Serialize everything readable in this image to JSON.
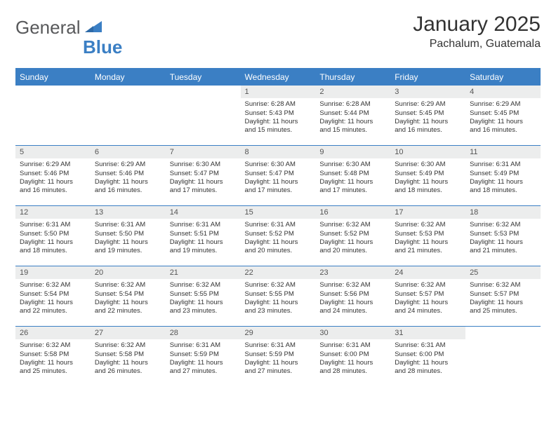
{
  "brand": {
    "name1": "General",
    "name2": "Blue"
  },
  "title": "January 2025",
  "location": "Pachalum, Guatemala",
  "style": {
    "accent": "#3b7fc4",
    "header_bg": "#3b7fc4",
    "header_fg": "#ffffff",
    "daynum_bg": "#eceded",
    "body_bg": "#ffffff",
    "text_color": "#333333",
    "logo_gray": "#58595b",
    "title_fontsize": 30,
    "location_fontsize": 16,
    "dayhead_fontsize": 12,
    "cell_fontsize": 9.5
  },
  "day_headers": [
    "Sunday",
    "Monday",
    "Tuesday",
    "Wednesday",
    "Thursday",
    "Friday",
    "Saturday"
  ],
  "weeks": [
    [
      {
        "n": "",
        "lines": []
      },
      {
        "n": "",
        "lines": []
      },
      {
        "n": "",
        "lines": []
      },
      {
        "n": "1",
        "lines": [
          "Sunrise: 6:28 AM",
          "Sunset: 5:43 PM",
          "Daylight: 11 hours",
          "and 15 minutes."
        ]
      },
      {
        "n": "2",
        "lines": [
          "Sunrise: 6:28 AM",
          "Sunset: 5:44 PM",
          "Daylight: 11 hours",
          "and 15 minutes."
        ]
      },
      {
        "n": "3",
        "lines": [
          "Sunrise: 6:29 AM",
          "Sunset: 5:45 PM",
          "Daylight: 11 hours",
          "and 16 minutes."
        ]
      },
      {
        "n": "4",
        "lines": [
          "Sunrise: 6:29 AM",
          "Sunset: 5:45 PM",
          "Daylight: 11 hours",
          "and 16 minutes."
        ]
      }
    ],
    [
      {
        "n": "5",
        "lines": [
          "Sunrise: 6:29 AM",
          "Sunset: 5:46 PM",
          "Daylight: 11 hours",
          "and 16 minutes."
        ]
      },
      {
        "n": "6",
        "lines": [
          "Sunrise: 6:29 AM",
          "Sunset: 5:46 PM",
          "Daylight: 11 hours",
          "and 16 minutes."
        ]
      },
      {
        "n": "7",
        "lines": [
          "Sunrise: 6:30 AM",
          "Sunset: 5:47 PM",
          "Daylight: 11 hours",
          "and 17 minutes."
        ]
      },
      {
        "n": "8",
        "lines": [
          "Sunrise: 6:30 AM",
          "Sunset: 5:47 PM",
          "Daylight: 11 hours",
          "and 17 minutes."
        ]
      },
      {
        "n": "9",
        "lines": [
          "Sunrise: 6:30 AM",
          "Sunset: 5:48 PM",
          "Daylight: 11 hours",
          "and 17 minutes."
        ]
      },
      {
        "n": "10",
        "lines": [
          "Sunrise: 6:30 AM",
          "Sunset: 5:49 PM",
          "Daylight: 11 hours",
          "and 18 minutes."
        ]
      },
      {
        "n": "11",
        "lines": [
          "Sunrise: 6:31 AM",
          "Sunset: 5:49 PM",
          "Daylight: 11 hours",
          "and 18 minutes."
        ]
      }
    ],
    [
      {
        "n": "12",
        "lines": [
          "Sunrise: 6:31 AM",
          "Sunset: 5:50 PM",
          "Daylight: 11 hours",
          "and 18 minutes."
        ]
      },
      {
        "n": "13",
        "lines": [
          "Sunrise: 6:31 AM",
          "Sunset: 5:50 PM",
          "Daylight: 11 hours",
          "and 19 minutes."
        ]
      },
      {
        "n": "14",
        "lines": [
          "Sunrise: 6:31 AM",
          "Sunset: 5:51 PM",
          "Daylight: 11 hours",
          "and 19 minutes."
        ]
      },
      {
        "n": "15",
        "lines": [
          "Sunrise: 6:31 AM",
          "Sunset: 5:52 PM",
          "Daylight: 11 hours",
          "and 20 minutes."
        ]
      },
      {
        "n": "16",
        "lines": [
          "Sunrise: 6:32 AM",
          "Sunset: 5:52 PM",
          "Daylight: 11 hours",
          "and 20 minutes."
        ]
      },
      {
        "n": "17",
        "lines": [
          "Sunrise: 6:32 AM",
          "Sunset: 5:53 PM",
          "Daylight: 11 hours",
          "and 21 minutes."
        ]
      },
      {
        "n": "18",
        "lines": [
          "Sunrise: 6:32 AM",
          "Sunset: 5:53 PM",
          "Daylight: 11 hours",
          "and 21 minutes."
        ]
      }
    ],
    [
      {
        "n": "19",
        "lines": [
          "Sunrise: 6:32 AM",
          "Sunset: 5:54 PM",
          "Daylight: 11 hours",
          "and 22 minutes."
        ]
      },
      {
        "n": "20",
        "lines": [
          "Sunrise: 6:32 AM",
          "Sunset: 5:54 PM",
          "Daylight: 11 hours",
          "and 22 minutes."
        ]
      },
      {
        "n": "21",
        "lines": [
          "Sunrise: 6:32 AM",
          "Sunset: 5:55 PM",
          "Daylight: 11 hours",
          "and 23 minutes."
        ]
      },
      {
        "n": "22",
        "lines": [
          "Sunrise: 6:32 AM",
          "Sunset: 5:55 PM",
          "Daylight: 11 hours",
          "and 23 minutes."
        ]
      },
      {
        "n": "23",
        "lines": [
          "Sunrise: 6:32 AM",
          "Sunset: 5:56 PM",
          "Daylight: 11 hours",
          "and 24 minutes."
        ]
      },
      {
        "n": "24",
        "lines": [
          "Sunrise: 6:32 AM",
          "Sunset: 5:57 PM",
          "Daylight: 11 hours",
          "and 24 minutes."
        ]
      },
      {
        "n": "25",
        "lines": [
          "Sunrise: 6:32 AM",
          "Sunset: 5:57 PM",
          "Daylight: 11 hours",
          "and 25 minutes."
        ]
      }
    ],
    [
      {
        "n": "26",
        "lines": [
          "Sunrise: 6:32 AM",
          "Sunset: 5:58 PM",
          "Daylight: 11 hours",
          "and 25 minutes."
        ]
      },
      {
        "n": "27",
        "lines": [
          "Sunrise: 6:32 AM",
          "Sunset: 5:58 PM",
          "Daylight: 11 hours",
          "and 26 minutes."
        ]
      },
      {
        "n": "28",
        "lines": [
          "Sunrise: 6:31 AM",
          "Sunset: 5:59 PM",
          "Daylight: 11 hours",
          "and 27 minutes."
        ]
      },
      {
        "n": "29",
        "lines": [
          "Sunrise: 6:31 AM",
          "Sunset: 5:59 PM",
          "Daylight: 11 hours",
          "and 27 minutes."
        ]
      },
      {
        "n": "30",
        "lines": [
          "Sunrise: 6:31 AM",
          "Sunset: 6:00 PM",
          "Daylight: 11 hours",
          "and 28 minutes."
        ]
      },
      {
        "n": "31",
        "lines": [
          "Sunrise: 6:31 AM",
          "Sunset: 6:00 PM",
          "Daylight: 11 hours",
          "and 28 minutes."
        ]
      },
      {
        "n": "",
        "lines": []
      }
    ]
  ]
}
